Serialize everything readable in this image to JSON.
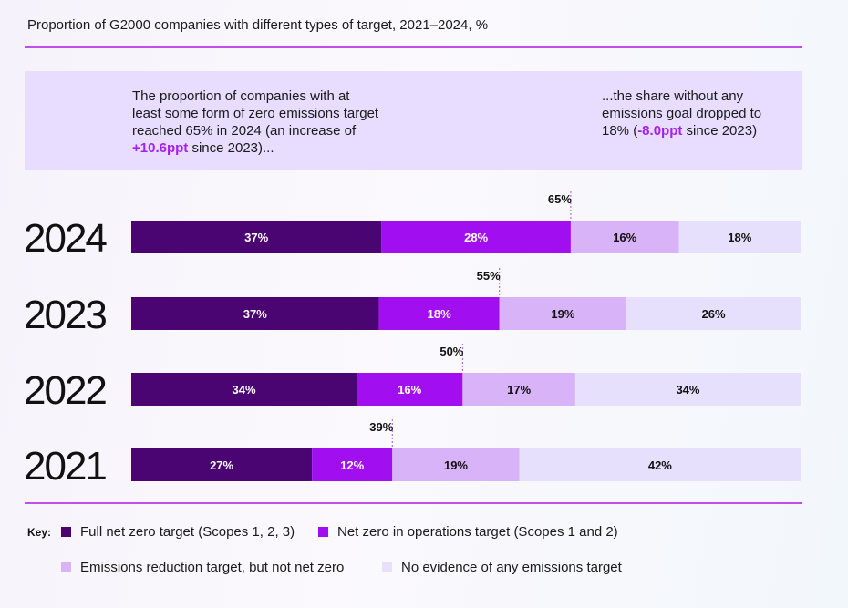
{
  "title": "Proportion of G2000 companies with different types of target, 2021–2024, %",
  "callouts": {
    "left_text": "The proportion of companies with at\nleast some form of zero emissions target\nreached 65% in 2024 (an increase of\n",
    "left_highlight": "+10.6ppt",
    "left_tail": " since 2023)...",
    "right_text": "...the share without any\nemissions goal dropped to\n18% (",
    "right_highlight": "-8.0ppt",
    "right_tail": " since 2023)"
  },
  "legend": {
    "key_label": "Key:",
    "items": [
      {
        "label": "Full net zero target (Scopes 1, 2, 3)",
        "color": "#4b0573"
      },
      {
        "label": "Net zero in operations target (Scopes 1 and 2)",
        "color": "#a10ff0"
      },
      {
        "label": "Emissions reduction target, but not net zero",
        "color": "#d8b3f7"
      },
      {
        "label": "No evidence of any emissions target",
        "color": "#e7e0fc"
      }
    ]
  },
  "chart_data": {
    "type": "bar",
    "orientation": "horizontal",
    "stacked": true,
    "categories": [
      "2024",
      "2023",
      "2022",
      "2021"
    ],
    "series": [
      {
        "name": "Full net zero target (Scopes 1, 2, 3)",
        "color": "#4b0573",
        "values": [
          37,
          37,
          34,
          27
        ],
        "labels": [
          "37%",
          "37%",
          "34%",
          "27%"
        ],
        "text_color": "#ffffff"
      },
      {
        "name": "Net zero in operations target (Scopes 1 and 2)",
        "color": "#a10ff0",
        "values": [
          28,
          18,
          16,
          12
        ],
        "labels": [
          "28%",
          "18%",
          "16%",
          "12%"
        ],
        "text_color": "#ffffff"
      },
      {
        "name": "Emissions reduction target, but not net zero",
        "color": "#d8b3f7",
        "values": [
          16,
          19,
          17,
          19
        ],
        "labels": [
          "16%",
          "19%",
          "17%",
          "19%"
        ],
        "text_color": "#111111"
      },
      {
        "name": "No evidence of any emissions target",
        "color": "#e7e0fc",
        "values": [
          18,
          26,
          34,
          42
        ],
        "labels": [
          "18%",
          "26%",
          "34%",
          "42%"
        ],
        "text_color": "#111111"
      }
    ],
    "net_zero_totals": [
      65,
      55,
      50,
      39
    ],
    "net_zero_total_labels": [
      "65%",
      "55%",
      "50%",
      "39%"
    ]
  }
}
